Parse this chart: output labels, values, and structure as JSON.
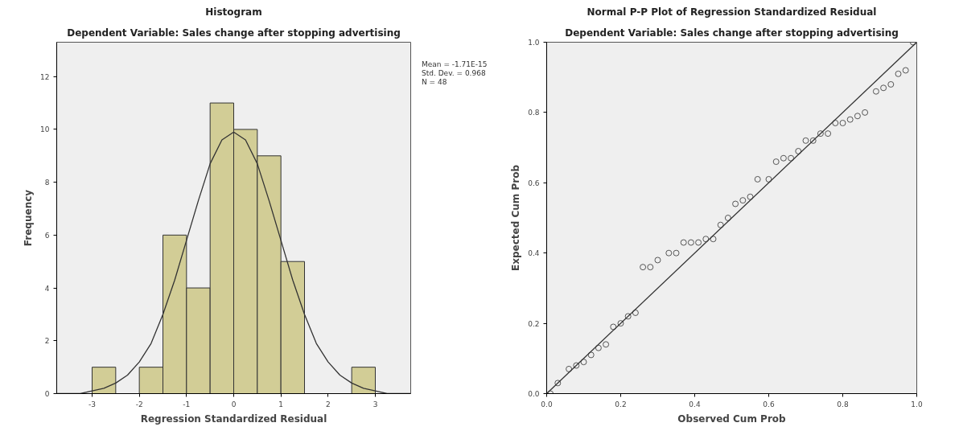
{
  "chart_data": [
    {
      "type": "histogram",
      "title": "Histogram",
      "subtitle": "Dependent Variable: Sales change after stopping advertising",
      "xlabel": "Regression Standardized Residual",
      "ylabel": "Frequency",
      "color": "#d2cd96",
      "bins": [
        -3,
        -2.5,
        -2,
        -1.5,
        -1,
        -0.5,
        0,
        0.5,
        1,
        1.5,
        2,
        2.5,
        3
      ],
      "values": [
        1,
        0,
        1,
        6,
        4,
        11,
        10,
        9,
        5,
        0,
        0,
        1
      ],
      "series": [
        {
          "type": "line",
          "color": "#333333",
          "x": [
            -3.75,
            -3.5,
            -3.25,
            -3,
            -2.75,
            -2.5,
            -2.25,
            -2,
            -1.75,
            -1.5,
            -1.25,
            -1,
            -0.75,
            -0.5,
            -0.25,
            0,
            0.25,
            0.5,
            0.75,
            1,
            1.25,
            1.5,
            1.75,
            2,
            2.25,
            2.5,
            2.75,
            3,
            3.25,
            3.5,
            3.75
          ],
          "values": [
            0.0,
            0.0,
            0.0,
            0.1,
            0.2,
            0.4,
            0.7,
            1.2,
            1.9,
            3.0,
            4.3,
            5.8,
            7.3,
            8.7,
            9.6,
            9.9,
            9.6,
            8.7,
            7.3,
            5.8,
            4.3,
            3.0,
            1.9,
            1.2,
            0.7,
            0.4,
            0.2,
            0.1,
            0.0,
            0.0,
            0.0
          ]
        }
      ],
      "annotations": [
        "Mean = -1.71E-15",
        "Std. Dev. = 0.968",
        "N = 48"
      ],
      "xlim": [
        -3.75,
        3.75
      ],
      "xticks": [
        -3,
        -2,
        -1,
        0,
        1,
        2,
        3
      ],
      "ylim": [
        0,
        13.3
      ],
      "yticks": [
        0,
        2,
        4,
        6,
        8,
        10,
        12
      ],
      "grid": false
    },
    {
      "type": "scatter",
      "title": "Normal P-P Plot of Regression Standardized Residual",
      "subtitle": "Dependent Variable: Sales change after stopping advertising",
      "xlabel": "Observed Cum Prob",
      "ylabel": "Expected Cum Prob",
      "series": [
        {
          "type": "scatter",
          "color": "#555555",
          "marker": "circle",
          "x": [
            0.01,
            0.03,
            0.06,
            0.08,
            0.1,
            0.12,
            0.14,
            0.16,
            0.18,
            0.2,
            0.22,
            0.24,
            0.26,
            0.28,
            0.3,
            0.33,
            0.35,
            0.37,
            0.39,
            0.41,
            0.43,
            0.45,
            0.47,
            0.49,
            0.51,
            0.53,
            0.55,
            0.57,
            0.6,
            0.62,
            0.64,
            0.66,
            0.68,
            0.7,
            0.72,
            0.74,
            0.76,
            0.78,
            0.8,
            0.82,
            0.84,
            0.86,
            0.89,
            0.91,
            0.93,
            0.95,
            0.97,
            0.99
          ],
          "values": [
            0.0,
            0.03,
            0.07,
            0.08,
            0.09,
            0.11,
            0.13,
            0.14,
            0.19,
            0.2,
            0.22,
            0.23,
            0.36,
            0.36,
            0.38,
            0.4,
            0.4,
            0.43,
            0.43,
            0.43,
            0.44,
            0.44,
            0.48,
            0.5,
            0.54,
            0.55,
            0.56,
            0.61,
            0.61,
            0.66,
            0.67,
            0.67,
            0.69,
            0.72,
            0.72,
            0.74,
            0.74,
            0.77,
            0.77,
            0.78,
            0.79,
            0.8,
            0.86,
            0.87,
            0.88,
            0.91,
            0.92,
            1.0
          ]
        },
        {
          "type": "line",
          "color": "#333333",
          "x": [
            0,
            1
          ],
          "values": [
            0,
            1
          ]
        }
      ],
      "xlim": [
        0,
        1
      ],
      "ylim": [
        0,
        1
      ],
      "xticks": [
        {
          "value": 0,
          "label": "0.0"
        },
        {
          "value": 0.2,
          "label": "0.2"
        },
        {
          "value": 0.4,
          "label": "0.4"
        },
        {
          "value": 0.6,
          "label": "0.6"
        },
        {
          "value": 0.8,
          "label": "0.8"
        },
        {
          "value": 1,
          "label": "1.0"
        }
      ],
      "yticks": [
        {
          "value": 0,
          "label": "0.0"
        },
        {
          "value": 0.2,
          "label": "0.2"
        },
        {
          "value": 0.4,
          "label": "0.4"
        },
        {
          "value": 0.6,
          "label": "0.6"
        },
        {
          "value": 0.8,
          "label": "0.8"
        },
        {
          "value": 1,
          "label": "1.0"
        }
      ],
      "grid": false
    }
  ]
}
